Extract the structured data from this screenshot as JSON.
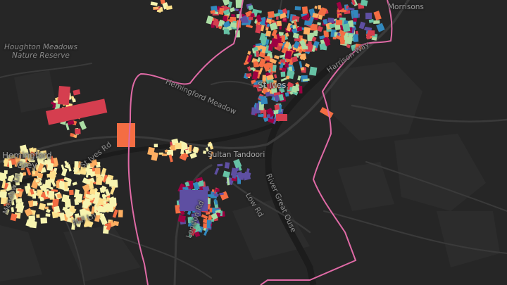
{
  "map": {
    "labels": {
      "houghton_meadows": [
        "Houghton Meadows",
        "Nature Reserve"
      ],
      "hemingford_meadow": "Hemingford Meadow",
      "st_ives": "St Ives",
      "sultan_tandoori": "Sultan Tandoori",
      "harrison_way": "Harrison Way",
      "morrisons": "Morrisons",
      "low_rd": "Low Rd",
      "river_great_ouse": "River Great Ouse",
      "hemingford_grey": [
        "Hemingford",
        "Grey"
      ],
      "st_ives_road": "St Ives Rd",
      "london_road": "London Rd",
      "mill_ln": "Mill Ln",
      "meadow_ln": "Meadow Ln"
    },
    "colors": {
      "background": "#262626",
      "boundary": "#e06aa6",
      "roads": "#3a3a3a",
      "river": "#1c1c1c",
      "building_palette": [
        "#f7f4b0",
        "#fee08b",
        "#fdae61",
        "#f46d43",
        "#d53e4f",
        "#9e0142",
        "#abdda4",
        "#66c2a5",
        "#3288bd",
        "#5e4fa2"
      ]
    }
  }
}
